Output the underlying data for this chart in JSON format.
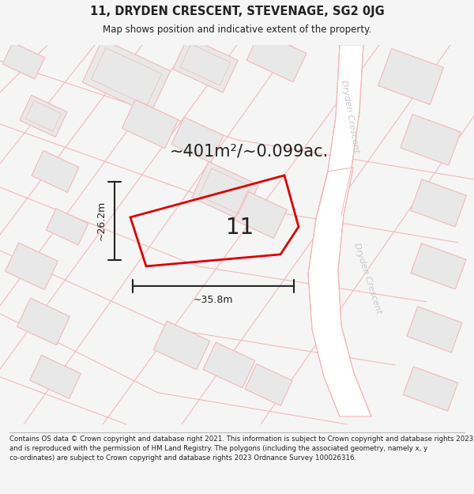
{
  "title": "11, DRYDEN CRESCENT, STEVENAGE, SG2 0JG",
  "subtitle": "Map shows position and indicative extent of the property.",
  "area_label": "~401m²/~0.099ac.",
  "plot_number": "11",
  "dim_width": "~35.8m",
  "dim_height": "~26.2m",
  "road_label_top": "Dryden Crescent",
  "road_label_bottom": "Dryden Crescent",
  "footer": "Contains OS data © Crown copyright and database right 2021. This information is subject to Crown copyright and database rights 2023 and is reproduced with the permission of HM Land Registry. The polygons (including the associated geometry, namely x, y co-ordinates) are subject to Crown copyright and database rights 2023 Ordnance Survey 100026316.",
  "bg_color": "#f5f5f5",
  "map_bg": "#f0f0f0",
  "building_fill": "#e8e8e8",
  "building_edge": "#f5b8b8",
  "road_fill": "#ffffff",
  "road_edge": "#f5b8b8",
  "plot_edge": "#dd0000",
  "dim_color": "#222222",
  "text_color": "#222222",
  "road_text_color": "#c8c8c8",
  "footer_sep_color": "#bbbbbb"
}
